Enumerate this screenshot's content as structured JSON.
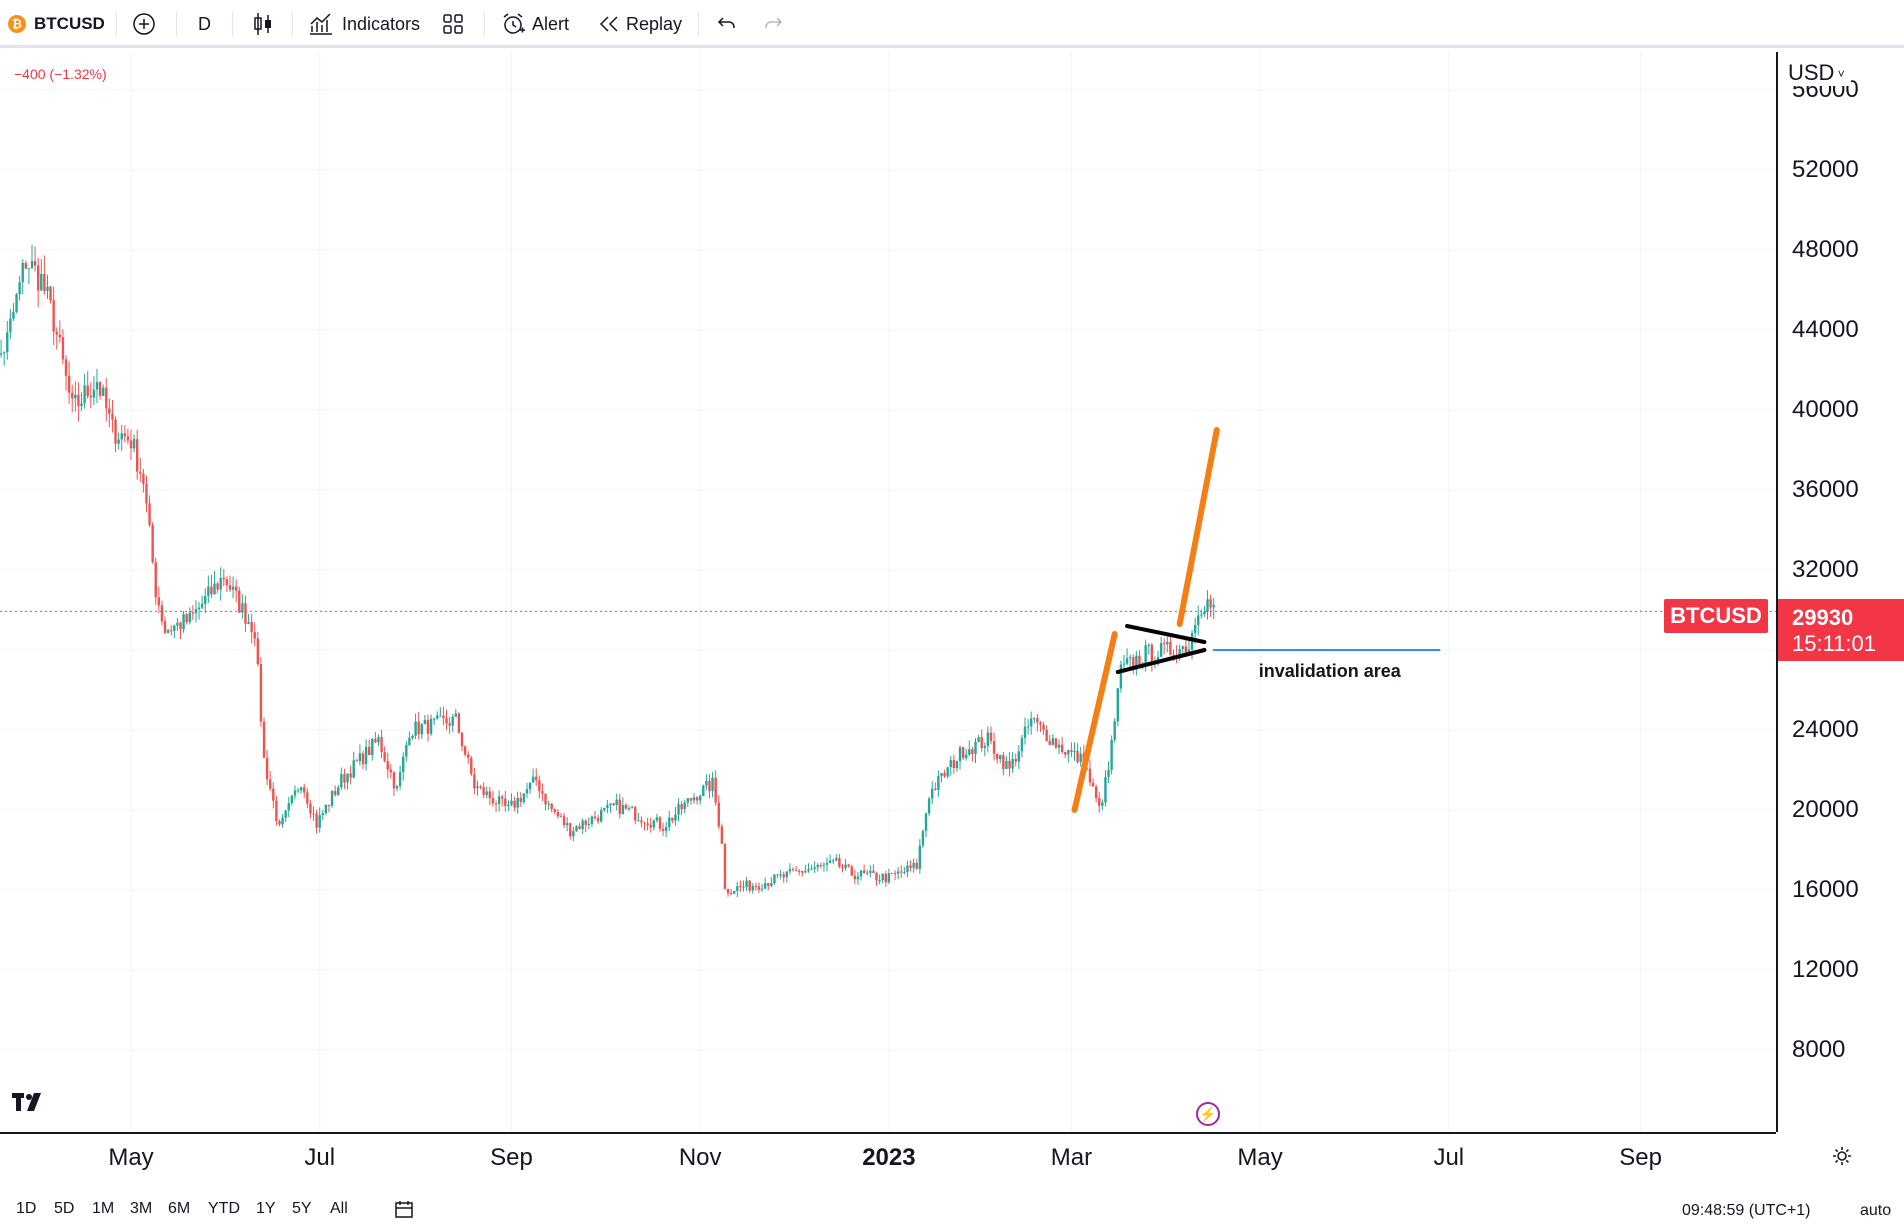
{
  "toolbar": {
    "symbol": "BTCUSD",
    "symbol_icon": "bitcoin-icon",
    "interval": "D",
    "indicators_label": "Indicators",
    "alert_label": "Alert",
    "replay_label": "Replay"
  },
  "legend": {
    "change": "−400 (−1.32%)"
  },
  "price_axis": {
    "currency": "USD",
    "ticks": [
      "56000",
      "52000",
      "48000",
      "44000",
      "40000",
      "36000",
      "32000",
      "28000",
      "24000",
      "20000",
      "16000",
      "12000",
      "8000"
    ],
    "last_price_label": "29930",
    "countdown": "15:11:01"
  },
  "symbol_tag": "BTCUSD",
  "time_axis": {
    "ticks": [
      "May",
      "Jul",
      "Sep",
      "Nov",
      "2023",
      "Mar",
      "May",
      "Jul",
      "Sep"
    ]
  },
  "annotation": {
    "label": "invalidation area"
  },
  "bottom_bar": {
    "ranges": [
      "1D",
      "5D",
      "1M",
      "3M",
      "6M",
      "YTD",
      "1Y",
      "5Y",
      "All"
    ],
    "clock": "09:48:59 (UTC+1)",
    "scale_mode": "auto"
  },
  "colors": {
    "up": "#26a69a",
    "down": "#ef5350",
    "flagpole": "#f57f17",
    "invalidation": "#2196f3",
    "price_tag": "#f23645"
  },
  "chart_data": {
    "type": "candlestick",
    "symbol": "BTCUSD",
    "interval": "D",
    "y_range": [
      4000,
      58000
    ],
    "price_ticks": [
      56000,
      52000,
      48000,
      44000,
      40000,
      36000,
      32000,
      28000,
      24000,
      20000,
      16000,
      12000,
      8000
    ],
    "x_range": [
      "2022-03-15",
      "2023-10-15"
    ],
    "time_ticks": [
      "2022-05-01",
      "2022-07-01",
      "2022-09-01",
      "2022-11-01",
      "2023-01-01",
      "2023-03-01",
      "2023-05-01",
      "2023-07-01",
      "2023-09-01"
    ],
    "last_price": 29930,
    "change_abs": -400,
    "change_pct": -1.32,
    "path_anchors": [
      [
        "2022-03-15",
        41000
      ],
      [
        "2022-03-22",
        43500
      ],
      [
        "2022-03-28",
        47500
      ],
      [
        "2022-04-02",
        46500
      ],
      [
        "2022-04-06",
        44500
      ],
      [
        "2022-04-12",
        40000
      ],
      [
        "2022-04-20",
        41500
      ],
      [
        "2022-04-25",
        39000
      ],
      [
        "2022-05-01",
        38500
      ],
      [
        "2022-05-05",
        36500
      ],
      [
        "2022-05-09",
        31000
      ],
      [
        "2022-05-12",
        29000
      ],
      [
        "2022-05-20",
        29500
      ],
      [
        "2022-05-31",
        31700
      ],
      [
        "2022-06-06",
        30000
      ],
      [
        "2022-06-10",
        29000
      ],
      [
        "2022-06-13",
        22500
      ],
      [
        "2022-06-18",
        19000
      ],
      [
        "2022-06-25",
        21500
      ],
      [
        "2022-06-30",
        19300
      ],
      [
        "2022-07-08",
        21500
      ],
      [
        "2022-07-20",
        23500
      ],
      [
        "2022-07-26",
        21000
      ],
      [
        "2022-07-30",
        24000
      ],
      [
        "2022-08-14",
        24500
      ],
      [
        "2022-08-20",
        21200
      ],
      [
        "2022-08-31",
        20000
      ],
      [
        "2022-09-09",
        21500
      ],
      [
        "2022-09-13",
        20200
      ],
      [
        "2022-09-20",
        19000
      ],
      [
        "2022-10-05",
        20200
      ],
      [
        "2022-10-20",
        19200
      ],
      [
        "2022-10-30",
        20700
      ],
      [
        "2022-11-05",
        21300
      ],
      [
        "2022-11-08",
        18500
      ],
      [
        "2022-11-09",
        16000
      ],
      [
        "2022-11-20",
        16300
      ],
      [
        "2022-12-05",
        17000
      ],
      [
        "2022-12-15",
        17300
      ],
      [
        "2022-12-20",
        16800
      ],
      [
        "2023-01-01",
        16600
      ],
      [
        "2023-01-10",
        17200
      ],
      [
        "2023-01-14",
        20800
      ],
      [
        "2023-01-25",
        23000
      ],
      [
        "2023-02-02",
        23500
      ],
      [
        "2023-02-09",
        22000
      ],
      [
        "2023-02-16",
        24500
      ],
      [
        "2023-02-25",
        23200
      ],
      [
        "2023-03-05",
        22400
      ],
      [
        "2023-03-10",
        20000
      ],
      [
        "2023-03-13",
        22000
      ],
      [
        "2023-03-17",
        27000
      ],
      [
        "2023-03-25",
        27800
      ],
      [
        "2023-04-03",
        28000
      ],
      [
        "2023-04-08",
        28200
      ],
      [
        "2023-04-11",
        30200
      ],
      [
        "2023-04-14",
        30400
      ],
      [
        "2023-04-16",
        29930
      ]
    ],
    "drawings": [
      {
        "kind": "flagpole",
        "from": [
          "2023-03-02",
          20000
        ],
        "to": [
          "2023-03-15",
          28800
        ]
      },
      {
        "kind": "flagpole",
        "from": [
          "2023-04-05",
          29300
        ],
        "to": [
          "2023-04-17",
          39000
        ]
      },
      {
        "kind": "flag-upper",
        "from": [
          "2023-03-19",
          29200
        ],
        "to": [
          "2023-04-13",
          28400
        ]
      },
      {
        "kind": "flag-lower",
        "from": [
          "2023-03-16",
          26900
        ],
        "to": [
          "2023-04-13",
          28000
        ]
      },
      {
        "kind": "invalidation",
        "from": [
          "2023-04-16",
          28000
        ],
        "to": [
          "2023-06-28",
          28000
        ],
        "label": "invalidation area"
      }
    ]
  }
}
